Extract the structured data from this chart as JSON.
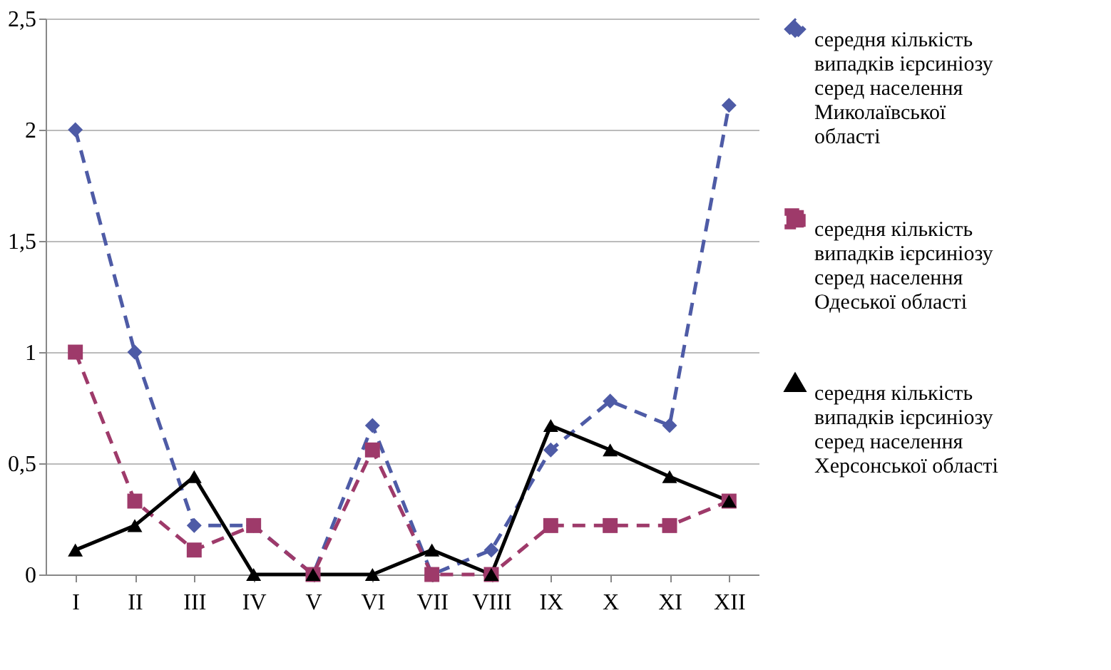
{
  "chart_data": {
    "type": "line",
    "categories": [
      "I",
      "II",
      "III",
      "IV",
      "V",
      "VI",
      "VII",
      "VIII",
      "IX",
      "X",
      "XI",
      "XII"
    ],
    "series": [
      {
        "name": "середня кількість випадків ієрсиніозу серед населення Миколаївської області",
        "color": "#4e5ba6",
        "marker": "diamond",
        "line_style": "dashed",
        "values": [
          2.0,
          1.0,
          0.22,
          0.22,
          0,
          0.67,
          0,
          0.11,
          0.56,
          0.78,
          0.67,
          2.11
        ]
      },
      {
        "name": "середня кількість випадків ієрсиніозу серед населення Одеської області",
        "color": "#9e3a6a",
        "marker": "square",
        "line_style": "dashed",
        "values": [
          1.0,
          0.33,
          0.11,
          0.22,
          0,
          0.56,
          0,
          0,
          0.22,
          0.22,
          0.22,
          0.33
        ]
      },
      {
        "name": "середня кількість випадків ієрсиніозу серед населення Херсонської області",
        "color": "#000000",
        "marker": "triangle",
        "line_style": "solid",
        "values": [
          0.11,
          0.22,
          0.44,
          0,
          0,
          0,
          0.11,
          0,
          0.67,
          0.56,
          0.44,
          0.33
        ]
      }
    ],
    "ylim": [
      0,
      2.5
    ],
    "yticks": [
      {
        "value": 0,
        "label": "0"
      },
      {
        "value": 0.5,
        "label": "0,5"
      },
      {
        "value": 1,
        "label": "1"
      },
      {
        "value": 1.5,
        "label": "1,5"
      },
      {
        "value": 2,
        "label": "2"
      },
      {
        "value": 2.5,
        "label": "2,5"
      }
    ],
    "grid": "y",
    "legend": "right"
  }
}
